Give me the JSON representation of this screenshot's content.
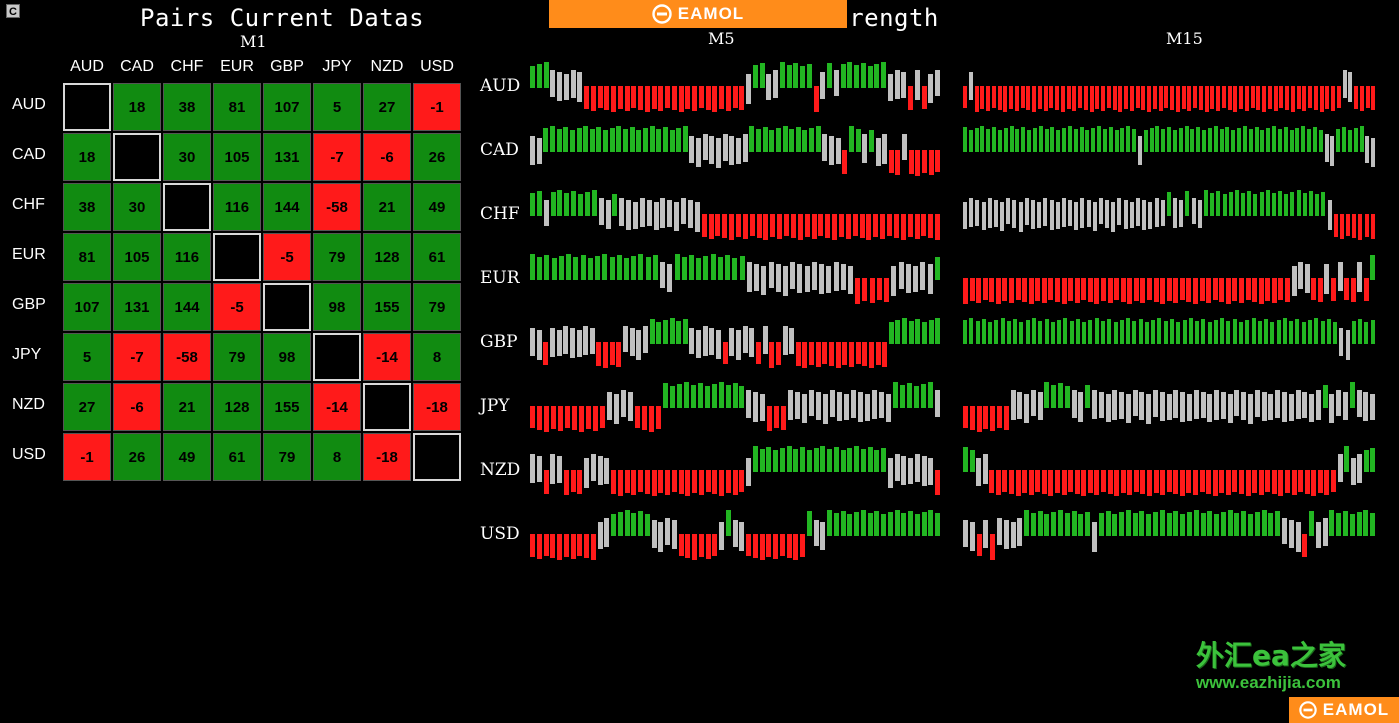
{
  "toolbar": {
    "corner_label": "C"
  },
  "titles": {
    "left": "Pairs Current Datas",
    "right": "rrencies Past Strength"
  },
  "brand": {
    "name": "EAMOL",
    "color": "#ff8c1a"
  },
  "timeframes": {
    "matrix": "M1",
    "left": "M5",
    "right": "M15"
  },
  "watermark": {
    "chinese": "外汇ea之家",
    "url": "www.eazhijia.com"
  },
  "colors": {
    "green": "#118b11",
    "red": "#ff1a1a",
    "bar_green": "#22b622",
    "bar_grey": "#c0c0c0"
  },
  "currencies": [
    "AUD",
    "CAD",
    "CHF",
    "EUR",
    "GBP",
    "JPY",
    "NZD",
    "USD"
  ],
  "matrix": [
    [
      null,
      "18",
      "38",
      "81",
      "107",
      "5",
      "27",
      "-1"
    ],
    [
      "18",
      null,
      "30",
      "105",
      "131",
      "-7",
      "-6",
      "26"
    ],
    [
      "38",
      "30",
      null,
      "116",
      "144",
      "-58",
      "21",
      "49"
    ],
    [
      "81",
      "105",
      "116",
      null,
      "-5",
      "79",
      "128",
      "61"
    ],
    [
      "107",
      "131",
      "144",
      "-5",
      null,
      "98",
      "155",
      "79"
    ],
    [
      "5",
      "-7",
      "-58",
      "79",
      "98",
      null,
      "-14",
      "8"
    ],
    [
      "27",
      "-6",
      "21",
      "128",
      "155",
      "-14",
      null,
      "-18"
    ],
    [
      "-1",
      "26",
      "49",
      "61",
      "79",
      "8",
      "-18",
      null
    ]
  ],
  "strength": {
    "M5": [
      "ggg w w w w w r r r r r r r r r r r r r r r r r r r r r r r r w g g w w g g g g g r w g w g g g g g g g w w w r w r w w",
      "w w g g g g g g g g g g g g g g g g g g g g g g w w w w w w w w w g g g g g g g g g g g w w w r g g w g w w r r w r r r r r",
      "g g w g g g g g g g w w g w w w w w w w w w w w w r r r r r r r r r r r r r r r r r r r r r r r r r r r r r r r r r r r",
      "g g g g g g g g g g g g g g g g g g w w g g g g g g g g g g w w w w w w w w w w w w w w w r r r r r w w w w w w g",
      "w w r w w w w w w w r r r r w w w w g g g g g g w w w w w r w w w w r w r r w w r r r r r r r r r r r r r r g g g g g g g g",
      "r r r r r r r r r r r w w w w r r r r g g g g g g g g g g g g w w w r r r w w w w w w w w w w w w w w w g g g g g g w",
      "w w r w w r r r w w w w r r r r r r r r r r r r r r r r r r r r w g g g g g g g g g g g g g g g g g g g g w w w w w w w r",
      "r r r r r r r r r r w w g g g g g g w w w w r r r r r r w g w w r r r r r r r r r g w w g g g g g g g g g g g g g g g g g"
    ],
    "M15": [
      "r w r r r r r r r r r r r r r r r r r r r r r r r r r r r r r r r r r r r r r r r r r r r r r r r r r r r r r r r r r r r r r r r r w w r r r r",
      "g g g g g g g g g g g g g g g g g g g g g g g g g g g g g g w g g g g g g g g g g g g g g g g g g g g g g g g g g g g g g g w w g g g g g w w",
      "w w w w w w w w w w w w w w w w w w w w w w w w w w w w w w w w w g w w g w w g g g g g g g g g g g g g g g g g g g g w r r r r r r r",
      "r r r r r r r r r r r r r r r r r r r r r r r r r r r r r r r r r r r r r r r r r r r r r r r r r r w w w r r w r w r r w r g",
      "g g g g g g g g g g g g g g g g g g g g g g g g g g g g g g g g g g g g g g g g g g g g g g g g g g g g g g g g g g g g w w g g g g",
      "r r r r r r r w w w w w g g g g w w g w w w w w w w w w w w w w w w w w w w w w w w w w w w w w w w w w w g w w w g w w w",
      "g g w w r r r r r r r r r r r r r r r r r r r r r r r r r r r r r r r r r r r r r r r r r r r r r r r r r r r r r w g w w g g",
      "w w r w r w w w w g g g g g g g g g g w g g g g g g g g g g g g g g g g g g g g g g g g g g g w w w r g w w g g g g g g g"
    ]
  }
}
